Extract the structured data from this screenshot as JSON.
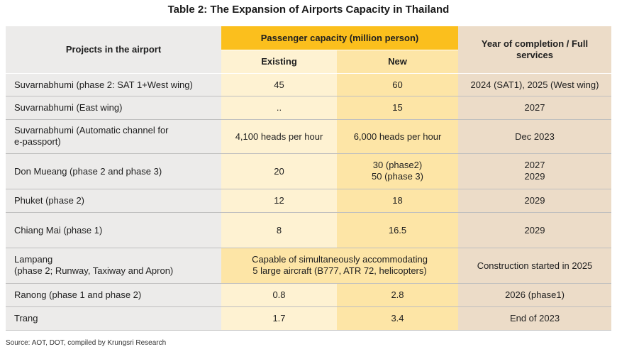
{
  "title": "Table 2:  The Expansion  of Airports Capacity in Thailand",
  "header": {
    "projects": "Projects in the airport",
    "capacity": "Passenger capacity (million person)",
    "existing": "Existing",
    "new": "New",
    "year_line1": "Year of completion / Full",
    "year_line2": "services"
  },
  "rows": [
    {
      "project": "Suvarnabhumi (phase 2: SAT 1+West wing)",
      "existing": "45",
      "new": "60",
      "year": "2024 (SAT1), 2025 (West wing)"
    },
    {
      "project": "Suvarnabhumi  (East wing)",
      "existing": "..",
      "new": "15",
      "year": "2027"
    },
    {
      "project_line1": "Suvarnabhumi  (Automatic channel for",
      "project_line2": "e-passport)",
      "existing": "4,100 heads per hour",
      "new": "6,000 heads per hour",
      "year": "Dec 2023"
    },
    {
      "project": "Don Mueang (phase 2 and  phase 3)",
      "existing": "20",
      "new_line1": "30 (phase2)",
      "new_line2": "50 (phase 3)",
      "year_line1": "2027",
      "year_line2": "2029"
    },
    {
      "project": "Phuket (phase 2)",
      "existing": "12",
      "new": "18",
      "year": "2029"
    },
    {
      "project": "Chiang Mai (phase 1)",
      "existing": "8",
      "new": "16.5",
      "year": "2029"
    },
    {
      "project_line1": "Lampang",
      "project_line2": "(phase 2; Runway, Taxiway and Apron)",
      "merged_line1": "Capable of simultaneously accommodating",
      "merged_line2": "5 large aircraft (B777, ATR 72, helicopters)",
      "year": "Construction started in 2025"
    },
    {
      "project": "Ranong (phase 1 and phase 2)",
      "existing": "0.8",
      "new": "2.8",
      "year": "2026 (phase1)"
    },
    {
      "project": "Trang",
      "existing": "1.7",
      "new": "3.4",
      "year": "End of 2023"
    }
  ],
  "source": "Source: AOT, DOT,  compiled by Krungsri Research"
}
